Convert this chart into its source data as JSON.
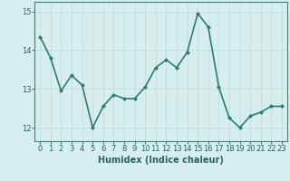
{
  "xlabel": "Humidex (Indice chaleur)",
  "x": [
    0,
    1,
    2,
    3,
    4,
    5,
    6,
    7,
    8,
    9,
    10,
    11,
    12,
    13,
    14,
    15,
    16,
    17,
    18,
    19,
    20,
    21,
    22,
    23
  ],
  "y": [
    14.35,
    13.8,
    12.95,
    13.35,
    13.1,
    12.0,
    12.55,
    12.85,
    12.75,
    12.75,
    13.05,
    13.55,
    13.75,
    13.55,
    13.95,
    14.95,
    14.6,
    13.05,
    12.25,
    12.0,
    12.3,
    12.4,
    12.55,
    12.55
  ],
  "line_color": "#2e7d6e",
  "marker": "D",
  "marker_size": 2,
  "bg_color": "#d6eeee",
  "grid_color": "#c8dada",
  "tick_label_color": "#2e6060",
  "axis_color": "#4a7a7a",
  "ylim": [
    11.65,
    15.25
  ],
  "yticks": [
    12,
    13,
    14,
    15
  ],
  "xticks": [
    0,
    1,
    2,
    3,
    4,
    5,
    6,
    7,
    8,
    9,
    10,
    11,
    12,
    13,
    14,
    15,
    16,
    17,
    18,
    19,
    20,
    21,
    22,
    23
  ],
  "xtick_labels": [
    "0",
    "1",
    "2",
    "3",
    "4",
    "5",
    "6",
    "7",
    "8",
    "9",
    "10",
    "11",
    "12",
    "13",
    "14",
    "15",
    "16",
    "17",
    "18",
    "19",
    "20",
    "21",
    "22",
    "23"
  ],
  "linewidth": 1.2,
  "xlabel_fontsize": 7,
  "tick_fontsize": 6
}
